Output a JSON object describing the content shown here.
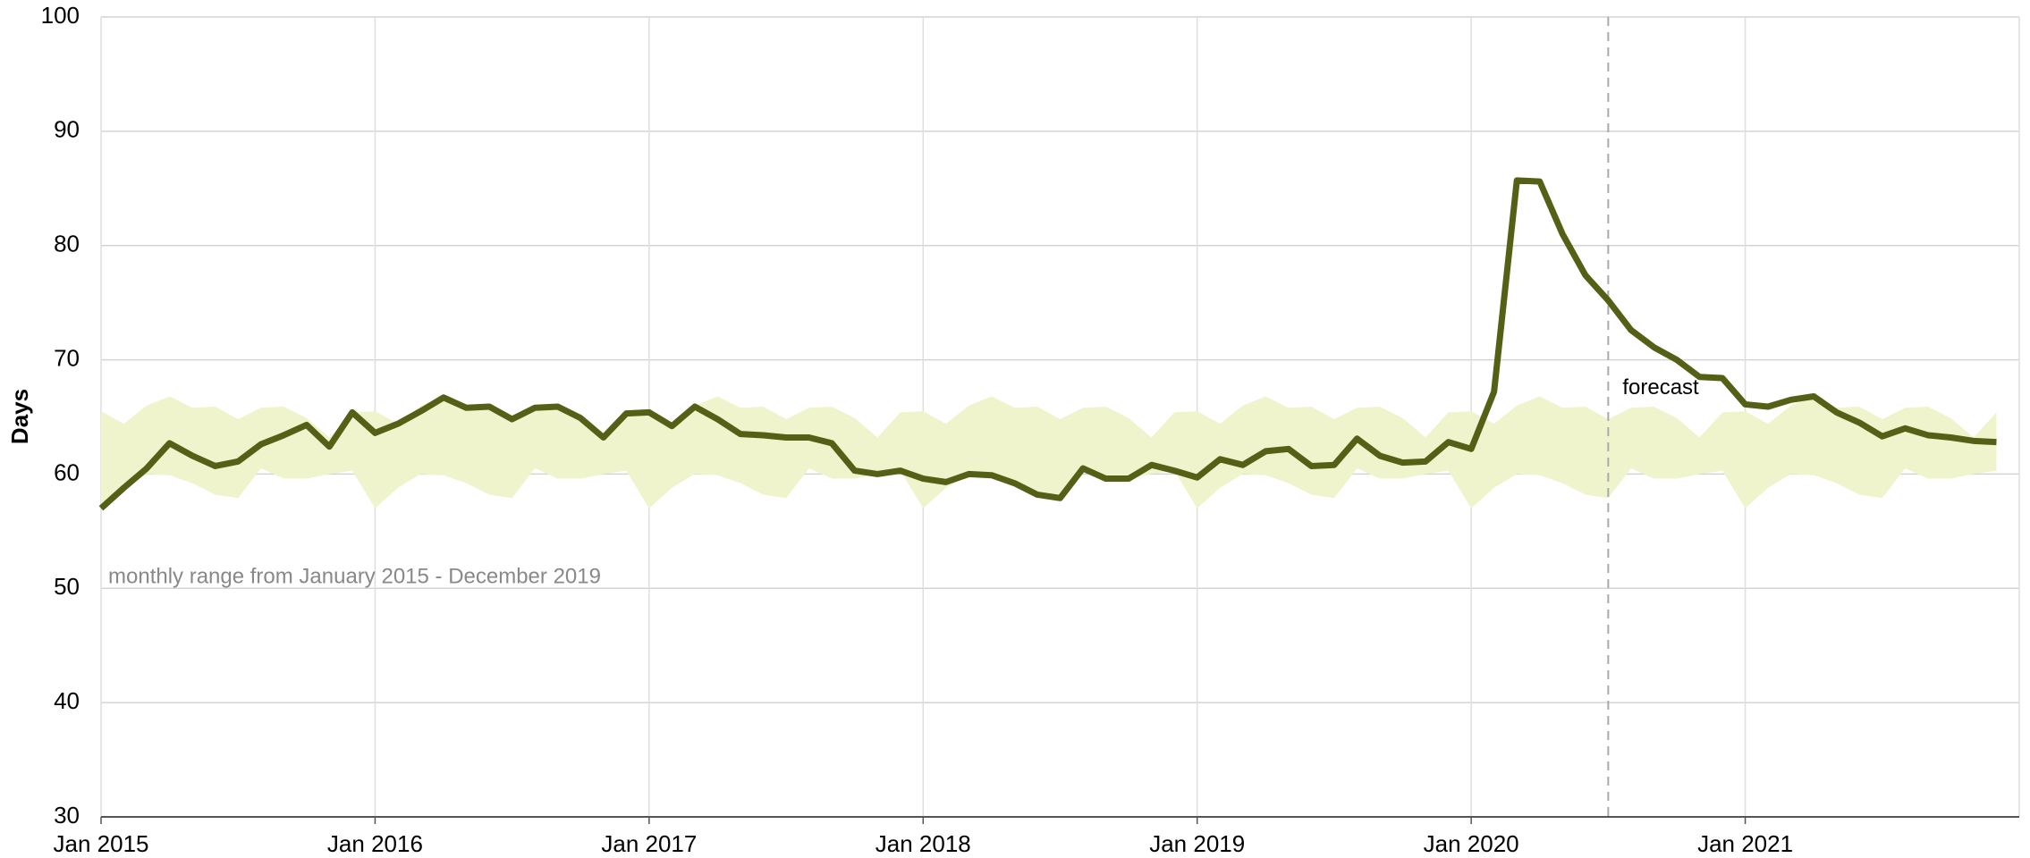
{
  "chart_data": {
    "type": "line",
    "y_label": "Days",
    "x": [
      "2015-01",
      "2015-02",
      "2015-03",
      "2015-04",
      "2015-05",
      "2015-06",
      "2015-07",
      "2015-08",
      "2015-09",
      "2015-10",
      "2015-11",
      "2015-12",
      "2016-01",
      "2016-02",
      "2016-03",
      "2016-04",
      "2016-05",
      "2016-06",
      "2016-07",
      "2016-08",
      "2016-09",
      "2016-10",
      "2016-11",
      "2016-12",
      "2017-01",
      "2017-02",
      "2017-03",
      "2017-04",
      "2017-05",
      "2017-06",
      "2017-07",
      "2017-08",
      "2017-09",
      "2017-10",
      "2017-11",
      "2017-12",
      "2018-01",
      "2018-02",
      "2018-03",
      "2018-04",
      "2018-05",
      "2018-06",
      "2018-07",
      "2018-08",
      "2018-09",
      "2018-10",
      "2018-11",
      "2018-12",
      "2019-01",
      "2019-02",
      "2019-03",
      "2019-04",
      "2019-05",
      "2019-06",
      "2019-07",
      "2019-08",
      "2019-09",
      "2019-10",
      "2019-11",
      "2019-12",
      "2020-01",
      "2020-02",
      "2020-03",
      "2020-04",
      "2020-05",
      "2020-06",
      "2020-07",
      "2020-08",
      "2020-09",
      "2020-10",
      "2020-11",
      "2020-12",
      "2021-01",
      "2021-02",
      "2021-03",
      "2021-04",
      "2021-05",
      "2021-06",
      "2021-07",
      "2021-08",
      "2021-09",
      "2021-10",
      "2021-11",
      "2021-12"
    ],
    "series": [
      {
        "color": "#556016",
        "values": [
          57,
          58.8,
          60.5,
          62.7,
          61.6,
          60.7,
          61.1,
          62.6,
          63.4,
          64.3,
          62.4,
          65.4,
          63.6,
          64.4,
          65.5,
          66.7,
          65.8,
          65.9,
          64.8,
          65.8,
          65.9,
          64.9,
          63.2,
          65.3,
          65.4,
          64.2,
          65.9,
          64.8,
          63.5,
          63.4,
          63.2,
          63.2,
          62.7,
          60.3,
          60.0,
          60.3,
          59.6,
          59.3,
          60.0,
          59.9,
          59.2,
          58.2,
          57.9,
          60.5,
          59.6,
          59.6,
          60.8,
          60.3,
          59.7,
          61.3,
          60.8,
          62.0,
          62.2,
          60.7,
          60.8,
          63.1,
          61.6,
          61.0,
          61.1,
          62.8,
          62.2,
          67.2,
          85.7,
          85.6,
          81.0,
          77.4,
          75.2,
          72.6,
          71.1,
          70.0,
          68.5,
          68.4,
          66.1,
          65.9,
          66.5,
          66.8,
          65.4,
          64.5,
          63.3,
          64.0,
          63.4,
          63.2,
          62.9,
          62.8
        ]
      }
    ],
    "band": {
      "label": "monthly range from January 2015 - December 2019",
      "color": "#eff4cc",
      "lower": [
        57.0,
        58.8,
        60.0,
        59.9,
        59.2,
        58.2,
        57.9,
        60.5,
        59.6,
        59.6,
        60.0,
        60.3,
        57.0,
        58.8,
        60.0,
        59.9,
        59.2,
        58.2,
        57.9,
        60.5,
        59.6,
        59.6,
        60.0,
        60.3,
        57.0,
        58.8,
        60.0,
        59.9,
        59.2,
        58.2,
        57.9,
        60.5,
        59.6,
        59.6,
        60.0,
        60.3,
        57.0,
        58.8,
        60.0,
        59.9,
        59.2,
        58.2,
        57.9,
        60.5,
        59.6,
        59.6,
        60.0,
        60.3,
        57.0,
        58.8,
        60.0,
        59.9,
        59.2,
        58.2,
        57.9,
        60.5,
        59.6,
        59.6,
        60.0,
        60.3,
        57.0,
        58.8,
        60.0,
        59.9,
        59.2,
        58.2,
        57.9,
        60.5,
        59.6,
        59.6,
        60.0,
        60.3,
        57.0,
        58.8,
        60.0,
        59.9,
        59.2,
        58.2,
        57.9,
        60.5,
        59.6,
        59.6,
        60.0,
        60.3
      ],
      "upper": [
        65.5,
        64.4,
        66.0,
        66.8,
        65.8,
        65.9,
        64.8,
        65.8,
        65.9,
        64.9,
        63.2,
        65.4,
        65.5,
        64.4,
        66.0,
        66.8,
        65.8,
        65.9,
        64.8,
        65.8,
        65.9,
        64.9,
        63.2,
        65.4,
        65.5,
        64.4,
        66.0,
        66.8,
        65.8,
        65.9,
        64.8,
        65.8,
        65.9,
        64.9,
        63.2,
        65.4,
        65.5,
        64.4,
        66.0,
        66.8,
        65.8,
        65.9,
        64.8,
        65.8,
        65.9,
        64.9,
        63.2,
        65.4,
        65.5,
        64.4,
        66.0,
        66.8,
        65.8,
        65.9,
        64.8,
        65.8,
        65.9,
        64.9,
        63.2,
        65.4,
        65.5,
        64.4,
        66.0,
        66.8,
        65.8,
        65.9,
        64.8,
        65.8,
        65.9,
        64.9,
        63.2,
        65.4,
        65.5,
        64.4,
        66.0,
        66.8,
        65.8,
        65.9,
        64.8,
        65.8,
        65.9,
        64.9,
        63.2,
        65.4
      ]
    },
    "forecast": {
      "x": "2020-07",
      "label": "forecast"
    },
    "xlim": [
      "2015-01",
      "2022-01"
    ],
    "xticks": [
      {
        "value": "2015-01",
        "label": "Jan 2015"
      },
      {
        "value": "2016-01",
        "label": "Jan 2016"
      },
      {
        "value": "2017-01",
        "label": "Jan 2017"
      },
      {
        "value": "2018-01",
        "label": "Jan 2018"
      },
      {
        "value": "2019-01",
        "label": "Jan 2019"
      },
      {
        "value": "2020-01",
        "label": "Jan 2020"
      },
      {
        "value": "2021-01",
        "label": "Jan 2021"
      }
    ],
    "ylim": [
      30,
      100
    ],
    "yticks": [
      30,
      40,
      50,
      60,
      70,
      80,
      90,
      100
    ],
    "grid": true
  }
}
